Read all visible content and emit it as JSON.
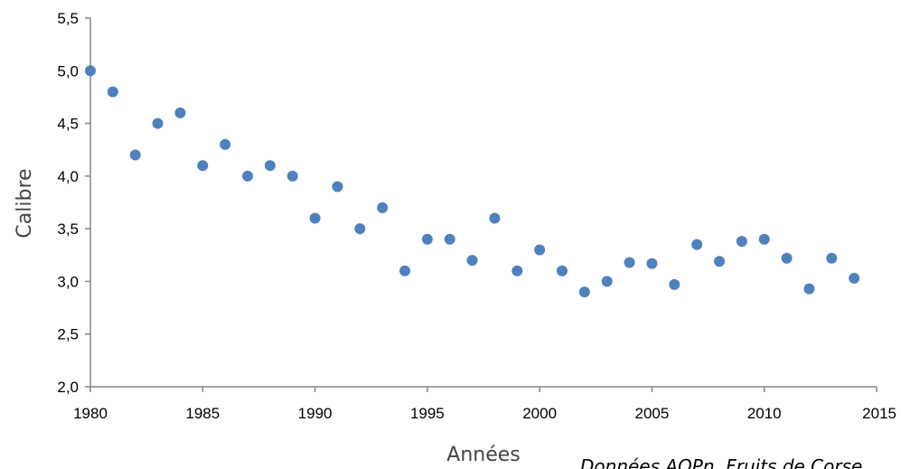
{
  "chart_data": {
    "type": "scatter",
    "title": "",
    "xlabel": "Années",
    "ylabel": "Calibre",
    "xlim": [
      1980,
      2015
    ],
    "ylim": [
      2.0,
      5.5
    ],
    "x_ticks": [
      "1980",
      "1985",
      "1990",
      "1995",
      "2000",
      "2005",
      "2010",
      "2015"
    ],
    "x_tick_values": [
      1980,
      1985,
      1990,
      1995,
      2000,
      2005,
      2010,
      2015
    ],
    "y_ticks": [
      "2,0",
      "2,5",
      "3,0",
      "3,5",
      "4,0",
      "4,5",
      "5,0",
      "5,5"
    ],
    "y_tick_values": [
      2.0,
      2.5,
      3.0,
      3.5,
      4.0,
      4.5,
      5.0,
      5.5
    ],
    "grid": false,
    "marker_color": "#4f81bd",
    "annotation": "Données AOPn, Fruits de Corse",
    "points": [
      {
        "x": 1980,
        "y": 5.0
      },
      {
        "x": 1981,
        "y": 4.8
      },
      {
        "x": 1982,
        "y": 4.2
      },
      {
        "x": 1983,
        "y": 4.5
      },
      {
        "x": 1984,
        "y": 4.6
      },
      {
        "x": 1985,
        "y": 4.1
      },
      {
        "x": 1986,
        "y": 4.3
      },
      {
        "x": 1987,
        "y": 4.0
      },
      {
        "x": 1988,
        "y": 4.1
      },
      {
        "x": 1989,
        "y": 4.0
      },
      {
        "x": 1990,
        "y": 3.6
      },
      {
        "x": 1991,
        "y": 3.9
      },
      {
        "x": 1992,
        "y": 3.5
      },
      {
        "x": 1993,
        "y": 3.7
      },
      {
        "x": 1994,
        "y": 3.1
      },
      {
        "x": 1995,
        "y": 3.4
      },
      {
        "x": 1996,
        "y": 3.4
      },
      {
        "x": 1997,
        "y": 3.2
      },
      {
        "x": 1998,
        "y": 3.6
      },
      {
        "x": 1999,
        "y": 3.1
      },
      {
        "x": 2000,
        "y": 3.3
      },
      {
        "x": 2001,
        "y": 3.1
      },
      {
        "x": 2002,
        "y": 2.9
      },
      {
        "x": 2003,
        "y": 3.0
      },
      {
        "x": 2004,
        "y": 3.18
      },
      {
        "x": 2005,
        "y": 3.17
      },
      {
        "x": 2006,
        "y": 2.97
      },
      {
        "x": 2007,
        "y": 3.35
      },
      {
        "x": 2008,
        "y": 3.19
      },
      {
        "x": 2009,
        "y": 3.38
      },
      {
        "x": 2010,
        "y": 3.4
      },
      {
        "x": 2011,
        "y": 3.22
      },
      {
        "x": 2012,
        "y": 2.93
      },
      {
        "x": 2013,
        "y": 3.22
      },
      {
        "x": 2014,
        "y": 3.03
      }
    ]
  }
}
